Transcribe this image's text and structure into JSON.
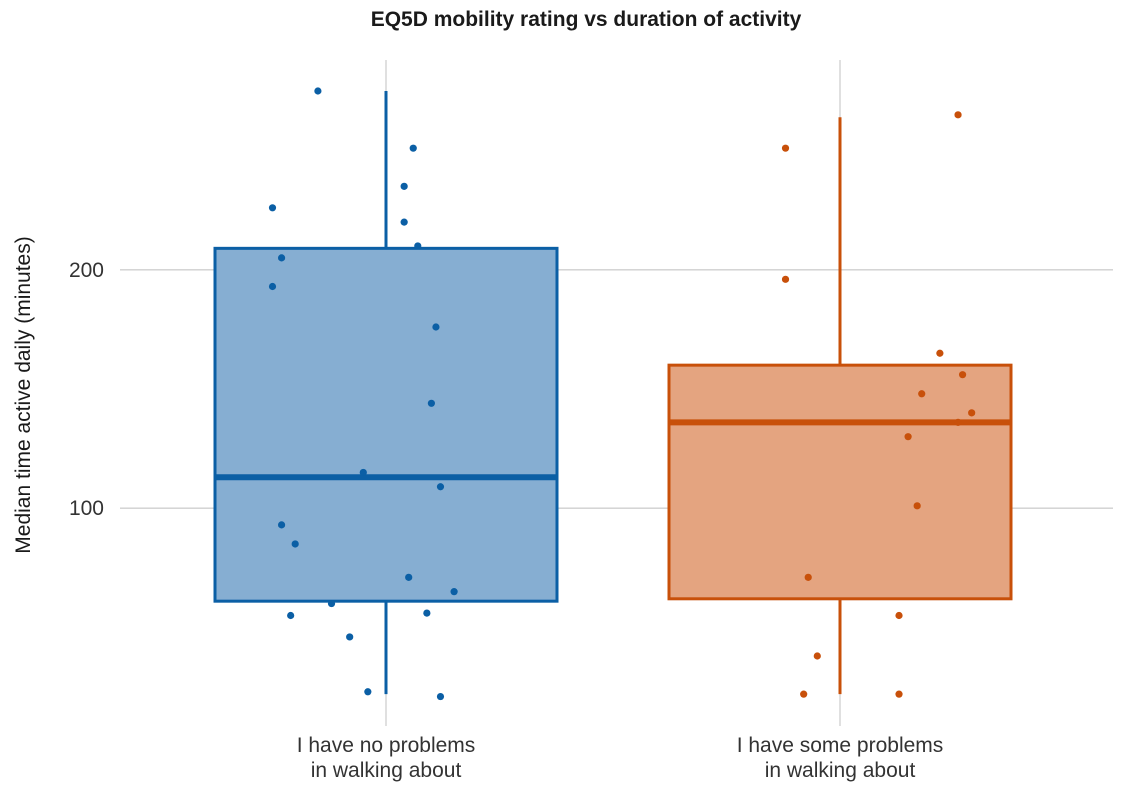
{
  "chart_data": {
    "type": "box",
    "title": "EQ5D mobility rating vs duration of activity",
    "xlabel": "",
    "ylabel": "Median time active daily (minutes)",
    "yticks": [
      100,
      200
    ],
    "ylim": [
      12,
      288
    ],
    "grid": true,
    "legend": "none",
    "categories": [
      [
        "I have no problems",
        "in walking about"
      ],
      [
        "I have some problems",
        "in walking about"
      ]
    ],
    "series": [
      {
        "color": "#0b5fa5",
        "fill": "#86aed2",
        "q1": 61,
        "median": 113,
        "q3": 209,
        "whisker_low": 22,
        "whisker_high": 275,
        "points": [
          {
            "x": 0.35,
            "y": 275
          },
          {
            "x": 0.56,
            "y": 251
          },
          {
            "x": 0.54,
            "y": 235
          },
          {
            "x": 0.54,
            "y": 220
          },
          {
            "x": 0.25,
            "y": 226
          },
          {
            "x": 0.27,
            "y": 205
          },
          {
            "x": 0.25,
            "y": 193
          },
          {
            "x": 0.57,
            "y": 210
          },
          {
            "x": 0.61,
            "y": 176
          },
          {
            "x": 0.6,
            "y": 144
          },
          {
            "x": 0.45,
            "y": 115
          },
          {
            "x": 0.62,
            "y": 109
          },
          {
            "x": 0.27,
            "y": 93
          },
          {
            "x": 0.3,
            "y": 85
          },
          {
            "x": 0.55,
            "y": 71
          },
          {
            "x": 0.65,
            "y": 65
          },
          {
            "x": 0.38,
            "y": 60
          },
          {
            "x": 0.29,
            "y": 55
          },
          {
            "x": 0.59,
            "y": 56
          },
          {
            "x": 0.42,
            "y": 46
          },
          {
            "x": 0.46,
            "y": 23
          },
          {
            "x": 0.62,
            "y": 21
          }
        ]
      },
      {
        "color": "#c8500a",
        "fill": "#e4a480",
        "q1": 62,
        "median": 136,
        "q3": 160,
        "whisker_low": 22,
        "whisker_high": 264,
        "points": [
          {
            "x": 1.38,
            "y": 251
          },
          {
            "x": 1.76,
            "y": 265
          },
          {
            "x": 1.38,
            "y": 196
          },
          {
            "x": 1.72,
            "y": 165
          },
          {
            "x": 1.77,
            "y": 156
          },
          {
            "x": 1.68,
            "y": 148
          },
          {
            "x": 1.79,
            "y": 140
          },
          {
            "x": 1.76,
            "y": 136
          },
          {
            "x": 1.65,
            "y": 130
          },
          {
            "x": 1.67,
            "y": 101
          },
          {
            "x": 1.43,
            "y": 71
          },
          {
            "x": 1.63,
            "y": 55
          },
          {
            "x": 1.45,
            "y": 38
          },
          {
            "x": 1.42,
            "y": 22
          },
          {
            "x": 1.63,
            "y": 22
          }
        ]
      }
    ]
  }
}
